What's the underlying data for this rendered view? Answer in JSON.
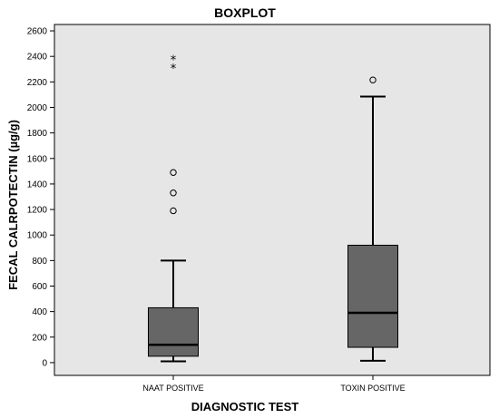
{
  "chart_data": {
    "type": "boxplot",
    "title": "BOXPLOT",
    "xlabel": "DIAGNOSTIC TEST",
    "ylabel": "FECAL CALRPOTECTIN (µg/g)",
    "ylim": [
      -100,
      2650
    ],
    "yticks": [
      0,
      200,
      400,
      600,
      800,
      1000,
      1200,
      1400,
      1600,
      1800,
      2000,
      2200,
      2400,
      2600
    ],
    "ytick_labels": [
      "0",
      "200",
      "400",
      "600",
      "800",
      "1000",
      "1200",
      "1400",
      "1600",
      "1800",
      "2000",
      "2200",
      "2400",
      "2600"
    ],
    "grid": false,
    "legend": false,
    "categories": [
      "NAAT POSITIVE",
      "TOXIN POSITIVE"
    ],
    "boxes": [
      {
        "category": "NAAT POSITIVE",
        "whisker_low": 10,
        "q1": 50,
        "median": 140,
        "q3": 430,
        "whisker_high": 800,
        "outliers": [
          1190,
          1330,
          1490
        ],
        "extremes": [
          2310,
          2375
        ]
      },
      {
        "category": "TOXIN POSITIVE",
        "whisker_low": 15,
        "q1": 120,
        "median": 390,
        "q3": 920,
        "whisker_high": 2085,
        "outliers": [
          2215
        ],
        "extremes": []
      }
    ],
    "colors": {
      "plot_background": "#e6e6e6",
      "box_fill": "#666666",
      "line": "#000000"
    }
  }
}
